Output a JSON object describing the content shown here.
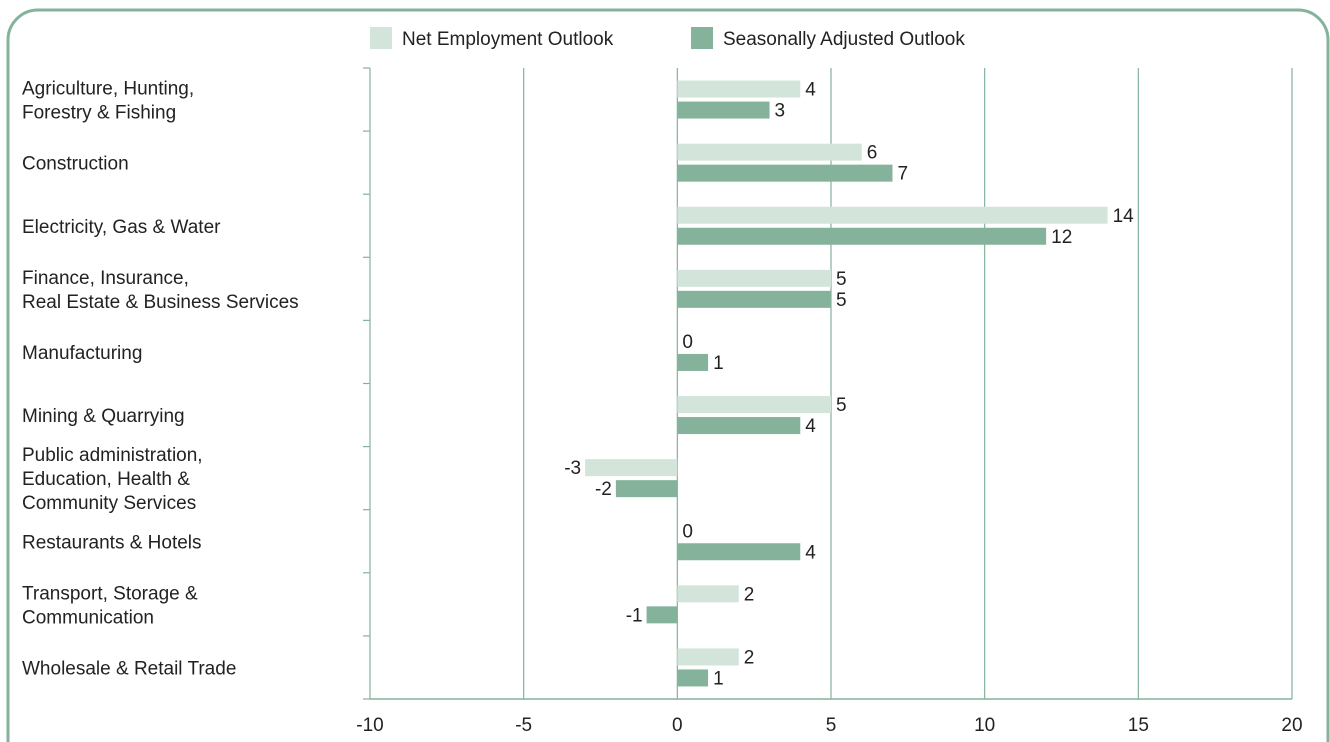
{
  "chart_data": {
    "type": "bar",
    "orientation": "horizontal",
    "categories": [
      [
        "Agriculture, Hunting,",
        "Forestry & Fishing"
      ],
      [
        "Construction"
      ],
      [
        "Electricity, Gas & Water"
      ],
      [
        "Finance, Insurance,",
        "Real Estate & Business Services"
      ],
      [
        "Manufacturing"
      ],
      [
        "Mining & Quarrying"
      ],
      [
        "Public administration,",
        "Education, Health &",
        "Community Services"
      ],
      [
        "Restaurants & Hotels"
      ],
      [
        "Transport, Storage &",
        "Communication"
      ],
      [
        "Wholesale & Retail Trade"
      ]
    ],
    "series": [
      {
        "name": "Net Employment Outlook",
        "color": "#d3e5da",
        "values": [
          4,
          6,
          14,
          5,
          0,
          5,
          -3,
          0,
          2,
          2
        ]
      },
      {
        "name": "Seasonally Adjusted Outlook",
        "color": "#84b29b",
        "values": [
          3,
          7,
          12,
          5,
          1,
          4,
          -2,
          4,
          -1,
          1
        ]
      }
    ],
    "xlim": [
      -10,
      20
    ],
    "xticks": [
      -10,
      -5,
      0,
      5,
      10,
      15,
      20
    ],
    "grid": true,
    "legend_position": "top-center"
  },
  "colors": {
    "frame": "#84b29b",
    "grid": "#84b29b",
    "text": "#222222"
  }
}
